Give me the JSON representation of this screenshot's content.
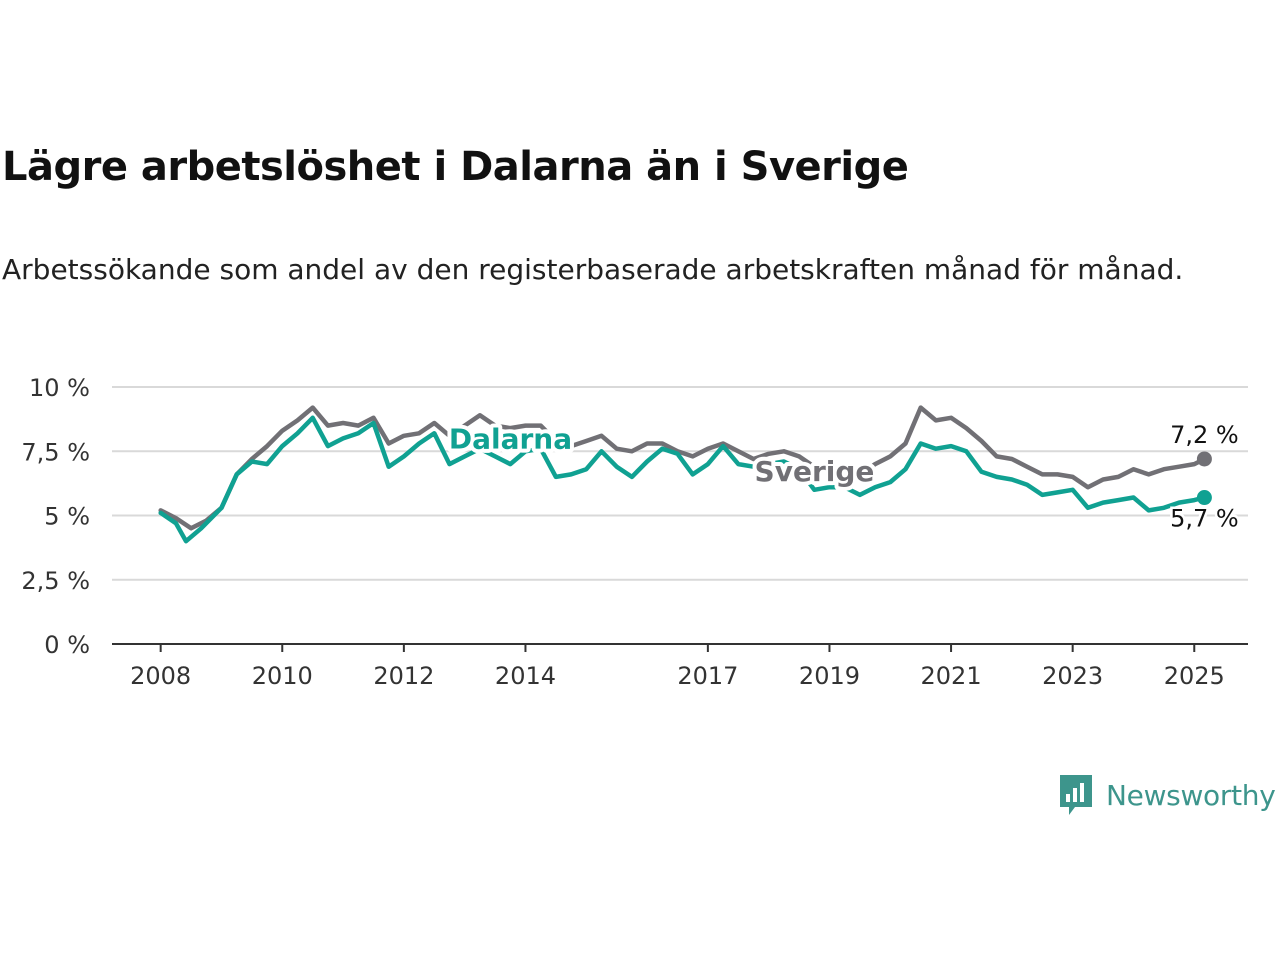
{
  "title": "Lägre arbetslöshet i Dalarna än i Sverige",
  "subtitle": "Arbetssökande som andel av den registerbaserade arbetskraften månad för månad.",
  "brand": {
    "name": "Newsworthy",
    "logo_icon": "bar-chart-speech-bubble-icon",
    "color": "#3d958c"
  },
  "chart_data": {
    "type": "line",
    "title": "Lägre arbetslöshet i Dalarna än i Sverige",
    "xlabel": "",
    "ylabel": "",
    "x_ticks": [
      "2008",
      "2010",
      "2012",
      "2014",
      "2017",
      "2019",
      "2021",
      "2023",
      "2025"
    ],
    "y_ticks": [
      "0 %",
      "2,5 %",
      "5 %",
      "7,5 %",
      "10 %"
    ],
    "ylim": [
      0,
      10
    ],
    "xlim": [
      "2007-03",
      "2025-12"
    ],
    "grid": true,
    "legend": "inline labels",
    "series": [
      {
        "name": "Sverige",
        "color": "#717075",
        "end_label": "7,2 %",
        "points": [
          [
            "2008-01",
            5.2
          ],
          [
            "2008-04",
            4.9
          ],
          [
            "2008-07",
            4.5
          ],
          [
            "2008-10",
            4.8
          ],
          [
            "2009-01",
            5.3
          ],
          [
            "2009-04",
            6.6
          ],
          [
            "2009-07",
            7.2
          ],
          [
            "2009-10",
            7.7
          ],
          [
            "2010-01",
            8.3
          ],
          [
            "2010-04",
            8.7
          ],
          [
            "2010-07",
            9.2
          ],
          [
            "2010-10",
            8.5
          ],
          [
            "2011-01",
            8.6
          ],
          [
            "2011-04",
            8.5
          ],
          [
            "2011-07",
            8.8
          ],
          [
            "2011-10",
            7.8
          ],
          [
            "2012-01",
            8.1
          ],
          [
            "2012-04",
            8.2
          ],
          [
            "2012-07",
            8.6
          ],
          [
            "2012-10",
            8.1
          ],
          [
            "2013-01",
            8.5
          ],
          [
            "2013-04",
            8.9
          ],
          [
            "2013-07",
            8.5
          ],
          [
            "2013-10",
            8.4
          ],
          [
            "2014-01",
            8.5
          ],
          [
            "2014-04",
            8.5
          ],
          [
            "2014-07",
            7.9
          ],
          [
            "2014-10",
            7.7
          ],
          [
            "2015-01",
            7.9
          ],
          [
            "2015-04",
            8.1
          ],
          [
            "2015-07",
            7.6
          ],
          [
            "2015-10",
            7.5
          ],
          [
            "2016-01",
            7.8
          ],
          [
            "2016-04",
            7.8
          ],
          [
            "2016-07",
            7.5
          ],
          [
            "2016-10",
            7.3
          ],
          [
            "2017-01",
            7.6
          ],
          [
            "2017-04",
            7.8
          ],
          [
            "2017-07",
            7.5
          ],
          [
            "2017-10",
            7.2
          ],
          [
            "2018-01",
            7.4
          ],
          [
            "2018-04",
            7.5
          ],
          [
            "2018-07",
            7.3
          ],
          [
            "2018-10",
            6.9
          ],
          [
            "2019-01",
            6.8
          ],
          [
            "2019-04",
            6.7
          ],
          [
            "2019-07",
            6.6
          ],
          [
            "2019-10",
            7.0
          ],
          [
            "2020-01",
            7.3
          ],
          [
            "2020-04",
            7.8
          ],
          [
            "2020-07",
            9.2
          ],
          [
            "2020-10",
            8.7
          ],
          [
            "2021-01",
            8.8
          ],
          [
            "2021-04",
            8.4
          ],
          [
            "2021-07",
            7.9
          ],
          [
            "2021-10",
            7.3
          ],
          [
            "2022-01",
            7.2
          ],
          [
            "2022-04",
            6.9
          ],
          [
            "2022-07",
            6.6
          ],
          [
            "2022-10",
            6.6
          ],
          [
            "2023-01",
            6.5
          ],
          [
            "2023-04",
            6.1
          ],
          [
            "2023-07",
            6.4
          ],
          [
            "2023-10",
            6.5
          ],
          [
            "2024-01",
            6.8
          ],
          [
            "2024-04",
            6.6
          ],
          [
            "2024-07",
            6.8
          ],
          [
            "2024-10",
            6.9
          ],
          [
            "2025-01",
            7.0
          ],
          [
            "2025-03",
            7.2
          ]
        ]
      },
      {
        "name": "Dalarna",
        "color": "#10a192",
        "end_label": "5,7 %",
        "points": [
          [
            "2008-01",
            5.1
          ],
          [
            "2008-04",
            4.7
          ],
          [
            "2008-06",
            4.0
          ],
          [
            "2008-09",
            4.5
          ],
          [
            "2009-01",
            5.3
          ],
          [
            "2009-04",
            6.6
          ],
          [
            "2009-07",
            7.1
          ],
          [
            "2009-10",
            7.0
          ],
          [
            "2010-01",
            7.7
          ],
          [
            "2010-04",
            8.2
          ],
          [
            "2010-07",
            8.8
          ],
          [
            "2010-10",
            7.7
          ],
          [
            "2011-01",
            8.0
          ],
          [
            "2011-04",
            8.2
          ],
          [
            "2011-07",
            8.6
          ],
          [
            "2011-10",
            6.9
          ],
          [
            "2012-01",
            7.3
          ],
          [
            "2012-04",
            7.8
          ],
          [
            "2012-07",
            8.2
          ],
          [
            "2012-10",
            7.0
          ],
          [
            "2013-01",
            7.3
          ],
          [
            "2013-04",
            7.6
          ],
          [
            "2013-07",
            7.3
          ],
          [
            "2013-10",
            7.0
          ],
          [
            "2014-01",
            7.5
          ],
          [
            "2014-04",
            7.6
          ],
          [
            "2014-07",
            6.5
          ],
          [
            "2014-10",
            6.6
          ],
          [
            "2015-01",
            6.8
          ],
          [
            "2015-04",
            7.5
          ],
          [
            "2015-07",
            6.9
          ],
          [
            "2015-10",
            6.5
          ],
          [
            "2016-01",
            7.1
          ],
          [
            "2016-04",
            7.6
          ],
          [
            "2016-07",
            7.4
          ],
          [
            "2016-10",
            6.6
          ],
          [
            "2017-01",
            7.0
          ],
          [
            "2017-04",
            7.7
          ],
          [
            "2017-07",
            7.0
          ],
          [
            "2017-10",
            6.9
          ],
          [
            "2018-01",
            7.0
          ],
          [
            "2018-04",
            7.1
          ],
          [
            "2018-07",
            6.8
          ],
          [
            "2018-10",
            6.0
          ],
          [
            "2019-01",
            6.1
          ],
          [
            "2019-04",
            6.1
          ],
          [
            "2019-07",
            5.8
          ],
          [
            "2019-10",
            6.1
          ],
          [
            "2020-01",
            6.3
          ],
          [
            "2020-04",
            6.8
          ],
          [
            "2020-07",
            7.8
          ],
          [
            "2020-10",
            7.6
          ],
          [
            "2021-01",
            7.7
          ],
          [
            "2021-04",
            7.5
          ],
          [
            "2021-07",
            6.7
          ],
          [
            "2021-10",
            6.5
          ],
          [
            "2022-01",
            6.4
          ],
          [
            "2022-04",
            6.2
          ],
          [
            "2022-07",
            5.8
          ],
          [
            "2022-10",
            5.9
          ],
          [
            "2023-01",
            6.0
          ],
          [
            "2023-04",
            5.3
          ],
          [
            "2023-07",
            5.5
          ],
          [
            "2023-10",
            5.6
          ],
          [
            "2024-01",
            5.7
          ],
          [
            "2024-04",
            5.2
          ],
          [
            "2024-07",
            5.3
          ],
          [
            "2024-10",
            5.5
          ],
          [
            "2025-01",
            5.6
          ],
          [
            "2025-03",
            5.7
          ]
        ]
      }
    ]
  }
}
